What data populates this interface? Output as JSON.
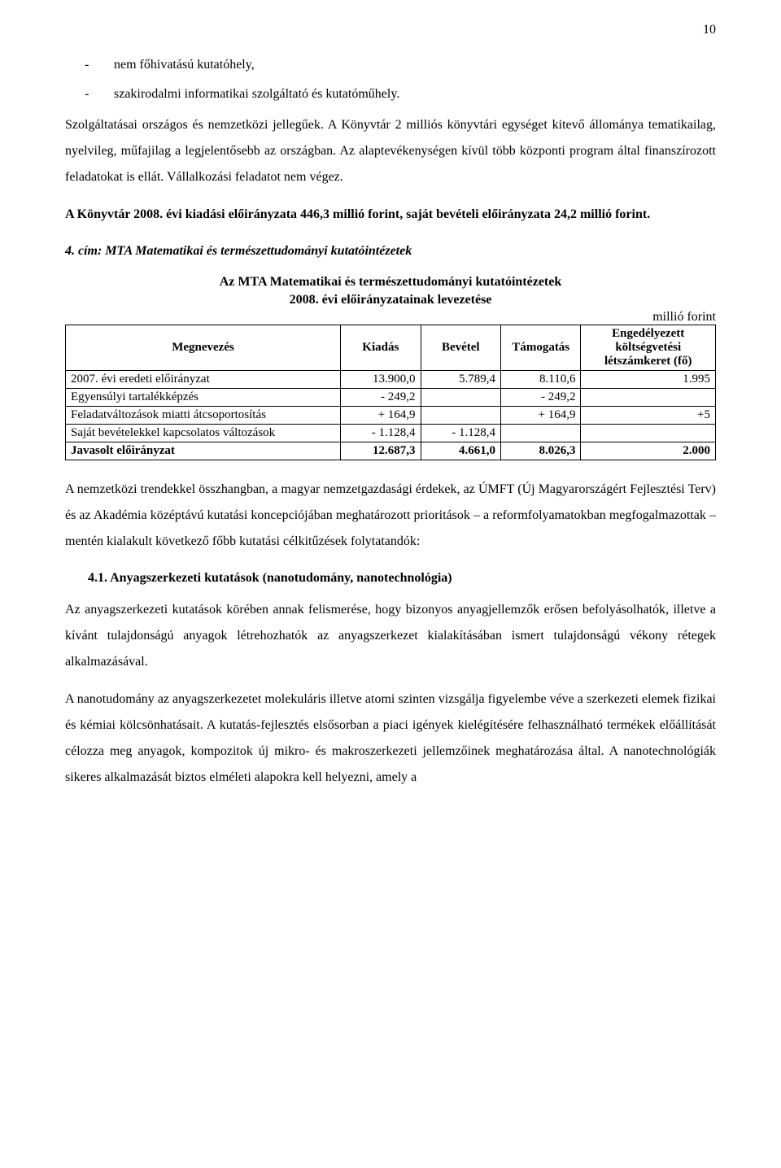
{
  "page_number": "10",
  "bullets": [
    "nem főhivatású kutatóhely,",
    "szakirodalmi informatikai szolgáltató és kutatóműhely."
  ],
  "para1": "Szolgáltatásai országos és nemzetközi jellegűek. A Könyvtár 2 milliós könyvtári egységet kitevő állománya tematikailag, nyelvileg, műfajilag a legjelentősebb az országban. Az alaptevékenységen kívül több központi program által finanszírozott feladatokat is ellát. Vállalkozási feladatot nem végez.",
  "para2_prefix": "A Könyvtár 2008. évi kiadási előirányzata 446,3 millió forint, saját bevételi előirányzata 24,2 millió forint.",
  "section4_title": "4. cím: MTA Matematikai és természettudományi kutatóintézetek",
  "table_title_l1": "Az MTA Matematikai és természettudományi kutatóintézetek",
  "table_title_l2": "2008. évi előirányzatainak levezetése",
  "unit": "millió forint",
  "table": {
    "headers": {
      "name": "Megnevezés",
      "expense": "Kiadás",
      "revenue": "Bevétel",
      "support": "Támogatás",
      "quota": "Engedélyezett költségvetési létszámkeret (fő)"
    },
    "rows": [
      {
        "name": "2007. évi eredeti előirányzat",
        "expense": "13.900,0",
        "revenue": "5.789,4",
        "support": "8.110,6",
        "quota": "1.995",
        "bold": false
      },
      {
        "name": "Egyensúlyi tartalékképzés",
        "expense": "- 249,2",
        "revenue": "",
        "support": "- 249,2",
        "quota": "",
        "bold": false
      },
      {
        "name": "Feladatváltozások miatti átcsoportosítás",
        "expense": "+ 164,9",
        "revenue": "",
        "support": "+ 164,9",
        "quota": "+5",
        "bold": false
      },
      {
        "name": "Saját bevételekkel kapcsolatos változások",
        "expense": "- 1.128,4",
        "revenue": "- 1.128,4",
        "support": "",
        "quota": "",
        "bold": false
      },
      {
        "name": "Javasolt előirányzat",
        "expense": "12.687,3",
        "revenue": "4.661,0",
        "support": "8.026,3",
        "quota": "2.000",
        "bold": true
      }
    ]
  },
  "para3": "A nemzetközi trendekkel összhangban, a magyar nemzetgazdasági érdekek, az ÚMFT (Új Magyarországért Fejlesztési Terv) és az Akadémia középtávú kutatási koncepciójában meghatározott prioritások – a reformfolyamatokban megfogalmazottak – mentén kialakult következő főbb kutatási célkitűzések folytatandók:",
  "heading41": "4.1. Anyagszerkezeti kutatások (nanotudomány, nanotechnológia)",
  "para4": "Az anyagszerkezeti kutatások körében annak felismerése, hogy bizonyos anyagjellemzők erősen befolyásolhatók, illetve a kívánt tulajdonságú anyagok létrehozhatók az anyagszerkezet kialakításában ismert tulajdonságú vékony rétegek alkalmazásával.",
  "para5": "A nanotudomány az anyagszerkezetet molekuláris illetve atomi szinten vizsgálja figyelembe véve a szerkezeti elemek fizikai és kémiai kölcsönhatásait. A kutatás-fejlesztés elsősorban a piaci igények kielégítésére felhasználható termékek előállítását célozza meg anyagok, kompozitok új mikro- és makroszerkezeti jellemzőinek meghatározása által. A nanotechnológiák sikeres alkalmazását biztos elméleti alapokra kell helyezni, amely a"
}
